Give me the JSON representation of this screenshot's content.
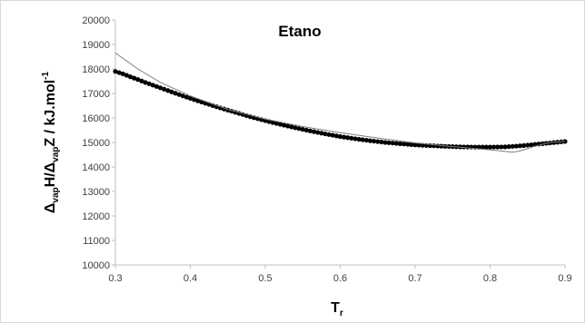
{
  "chart_data": {
    "type": "scatter",
    "title": "Etano",
    "xlabel": {
      "main": "T",
      "sub": "r"
    },
    "ylabel": {
      "parts": [
        {
          "text": "Δ",
          "style": "normal"
        },
        {
          "text": "vap",
          "style": "sub"
        },
        {
          "text": "H/Δ",
          "style": "normal"
        },
        {
          "text": "vap",
          "style": "sub"
        },
        {
          "text": "Z / kJ.mol",
          "style": "normal"
        },
        {
          "text": "-1",
          "style": "sup"
        }
      ]
    },
    "xlim": [
      0.3,
      0.9
    ],
    "ylim": [
      10000,
      20000
    ],
    "xticks": [
      "0.3",
      "0.4",
      "0.5",
      "0.6",
      "0.7",
      "0.8",
      "0.9"
    ],
    "yticks": [
      "10000",
      "11000",
      "12000",
      "13000",
      "14000",
      "15000",
      "16000",
      "17000",
      "18000",
      "19000",
      "20000"
    ],
    "grid": false,
    "series": [
      {
        "kind": "markers",
        "color": "#000000",
        "x": [
          0.3,
          0.31,
          0.32,
          0.33,
          0.34,
          0.35,
          0.36,
          0.37,
          0.38,
          0.39,
          0.4,
          0.42,
          0.44,
          0.46,
          0.48,
          0.5,
          0.52,
          0.54,
          0.56,
          0.58,
          0.6,
          0.62,
          0.64,
          0.66,
          0.68,
          0.7,
          0.72,
          0.74,
          0.76,
          0.78,
          0.8,
          0.82,
          0.84,
          0.86,
          0.88,
          0.9
        ],
        "y": [
          17900,
          17800,
          17680,
          17570,
          17450,
          17340,
          17230,
          17120,
          17010,
          16900,
          16800,
          16600,
          16410,
          16230,
          16050,
          15890,
          15740,
          15600,
          15470,
          15350,
          15240,
          15150,
          15070,
          15000,
          14950,
          14900,
          14870,
          14840,
          14820,
          14810,
          14810,
          14820,
          14860,
          14920,
          14980,
          15040
        ]
      },
      {
        "kind": "line",
        "color": "#7f7f7f",
        "x": [
          0.3,
          0.33,
          0.36,
          0.4,
          0.45,
          0.5,
          0.55,
          0.6,
          0.65,
          0.7,
          0.75,
          0.8,
          0.83,
          0.84,
          0.86,
          0.88,
          0.9
        ],
        "y": [
          18650,
          18000,
          17450,
          16900,
          16350,
          15950,
          15650,
          15400,
          15180,
          14980,
          14830,
          14700,
          14600,
          14650,
          14850,
          15000,
          15050
        ]
      }
    ]
  }
}
